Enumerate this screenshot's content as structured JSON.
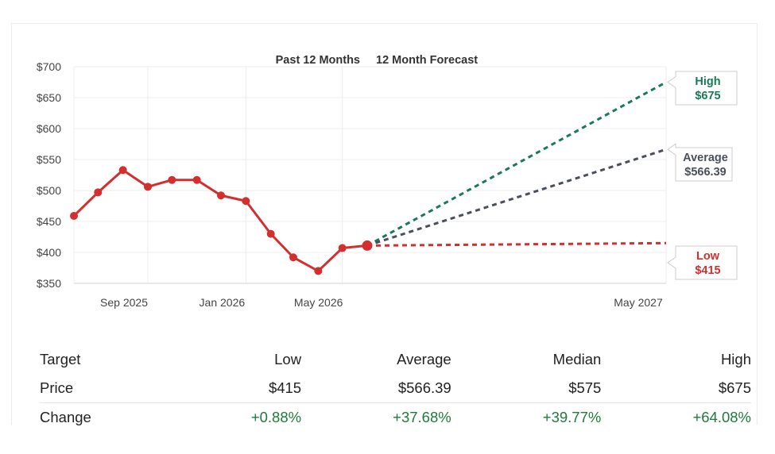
{
  "chart_data": {
    "type": "line",
    "header": {
      "past_label": "Past 12 Months",
      "forecast_label": "12 Month Forecast"
    },
    "y_ticks": [
      "$700",
      "$650",
      "$600",
      "$550",
      "$500",
      "$450",
      "$400",
      "$350"
    ],
    "ylim": [
      350,
      700
    ],
    "x_tick_labels": [
      "Sep 2025",
      "Jan 2026",
      "May 2026",
      "May 2027"
    ],
    "history": {
      "dates": [
        "2025-06-01",
        "2025-07-01",
        "2025-08-01",
        "2025-09-01",
        "2025-10-01",
        "2025-11-01",
        "2025-12-01",
        "2026-01-01",
        "2026-02-01",
        "2026-03-01",
        "2026-04-01",
        "2026-05-01",
        "2026-06-01"
      ],
      "values": [
        459,
        497,
        533,
        506,
        517,
        517,
        492,
        483,
        430,
        392,
        370,
        407,
        411
      ]
    },
    "forecast": {
      "start_date": "2026-06-01",
      "end_date": "2027-05-31",
      "start_value": 411,
      "series": [
        {
          "key": "high",
          "name": "High",
          "value": 675,
          "label_value": "$675",
          "color": "#1a7a55"
        },
        {
          "key": "average",
          "name": "Average",
          "value": 566.39,
          "label_value": "$566.39",
          "color": "#4a4f5c"
        },
        {
          "key": "low",
          "name": "Low",
          "value": 415,
          "label_value": "$415",
          "color": "#d32f2f"
        }
      ]
    },
    "grid": true,
    "line_color": "#d32f2f"
  },
  "table": {
    "headers": [
      "Target",
      "Low",
      "Average",
      "Median",
      "High"
    ],
    "rows": [
      {
        "label": "Price",
        "values": [
          "$415",
          "$566.39",
          "$575",
          "$675"
        ]
      },
      {
        "label": "Change",
        "values": [
          "+0.88%",
          "+37.68%",
          "+39.77%",
          "+64.08%"
        ]
      }
    ]
  }
}
